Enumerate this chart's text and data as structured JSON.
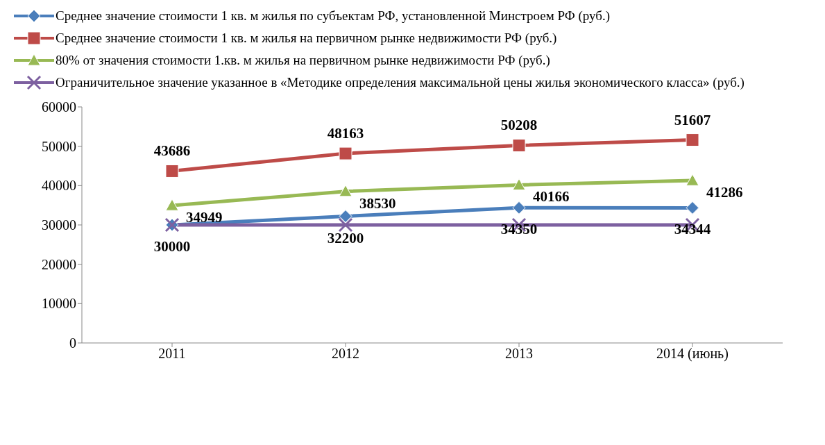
{
  "chart_data": {
    "type": "line",
    "categories": [
      "2011",
      "2012",
      "2013",
      "2014 (июнь)"
    ],
    "series": [
      {
        "name": "Среднее значение стоимости 1 кв. м жилья по субъектам РФ, установленной Минстроем РФ (руб.)",
        "color": "#4a7ebb",
        "marker": "diamond",
        "values": [
          30000,
          32200,
          34350,
          34344
        ],
        "value_labels": [
          "30000",
          "32200",
          "34350",
          "34344"
        ]
      },
      {
        "name": "Среднее значение стоимости 1 кв. м жилья на первичном рынке недвижимости РФ (руб.)",
        "color": "#be4b48",
        "marker": "square",
        "values": [
          43686,
          48163,
          50208,
          51607
        ],
        "value_labels": [
          "43686",
          "48163",
          "50208",
          "51607"
        ]
      },
      {
        "name": "80% от значения стоимости 1.кв. м жилья на первичном рынке недвижимости РФ (руб.)",
        "color": "#98b954",
        "marker": "triangle",
        "values": [
          34949,
          38530,
          40166,
          41286
        ],
        "value_labels": [
          "34949",
          "38530",
          "40166",
          "41286"
        ]
      },
      {
        "name": "Ограничительное значение указанное в «Методике определения максимальной цены жилья экономического класса» (руб.)",
        "color": "#7d60a0",
        "marker": "cross",
        "values": [
          30000,
          30000,
          30000,
          30000
        ]
      }
    ],
    "ylim": [
      0,
      60000
    ],
    "yticks": [
      0,
      10000,
      20000,
      30000,
      40000,
      50000,
      60000
    ],
    "legend": "top"
  }
}
